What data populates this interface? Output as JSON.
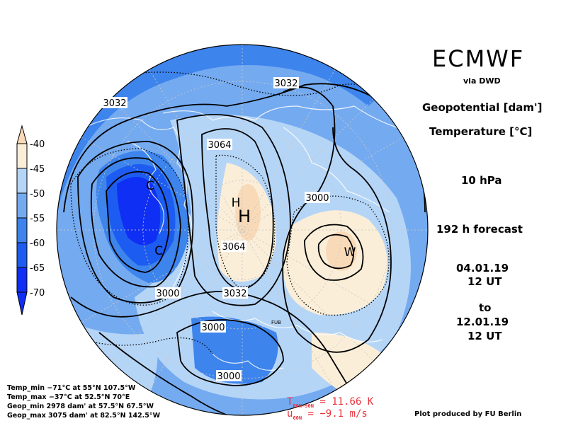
{
  "header": {
    "brand": "ECMWF",
    "via": "via DWD",
    "variable1": "Geopotential [dam']",
    "variable2": "Temperature [°C]",
    "level": "10 hPa",
    "forecast": "192 h forecast",
    "init_date": "04.01.19",
    "init_time": "12 UT",
    "to": "to",
    "valid_date": "12.01.19",
    "valid_time": "12 UT"
  },
  "legend": {
    "labels": [
      "-40",
      "-45",
      "-50",
      "-55",
      "-60",
      "-65",
      "-70"
    ],
    "colors": [
      "#f9dab8",
      "#fbeed8",
      "#b5d5f7",
      "#74aaf0",
      "#3d84ec",
      "#1d5cf0",
      "#0f2ff5"
    ]
  },
  "contour_labels": {
    "c3032_nw": "3032",
    "c3032_n": "3032",
    "c3064_top": "3064",
    "c3000_e": "3000",
    "c3064_mid": "3064",
    "c3000_w": "3000",
    "c3032_s": "3032",
    "c3000_s1": "3000",
    "c3000_s2": "3000"
  },
  "center_marks": {
    "high1": "H",
    "high2": "H",
    "cold1": "C",
    "cold2": "C",
    "warm": "W",
    "station": "FUB"
  },
  "stats": {
    "temp_min": "Temp_min  −71°C at 55°N 107.5°W",
    "temp_max": "Temp_max  −37°C at 52.5°N 70°E",
    "geop_min": "Geop_min 2978 dam' at 57.5°N 67.5°W",
    "geop_max": "Geop_max 3075 dam' at 82.5°N 142.5°W"
  },
  "diagnostics": {
    "t_main": "T",
    "t_sub": "60N−90N",
    "t_value": " = 11.66 K",
    "u_main": "u",
    "u_sub": "60N",
    "u_value": " = −9.1 m/s"
  },
  "credit": "Plot produced by FU Berlin"
}
